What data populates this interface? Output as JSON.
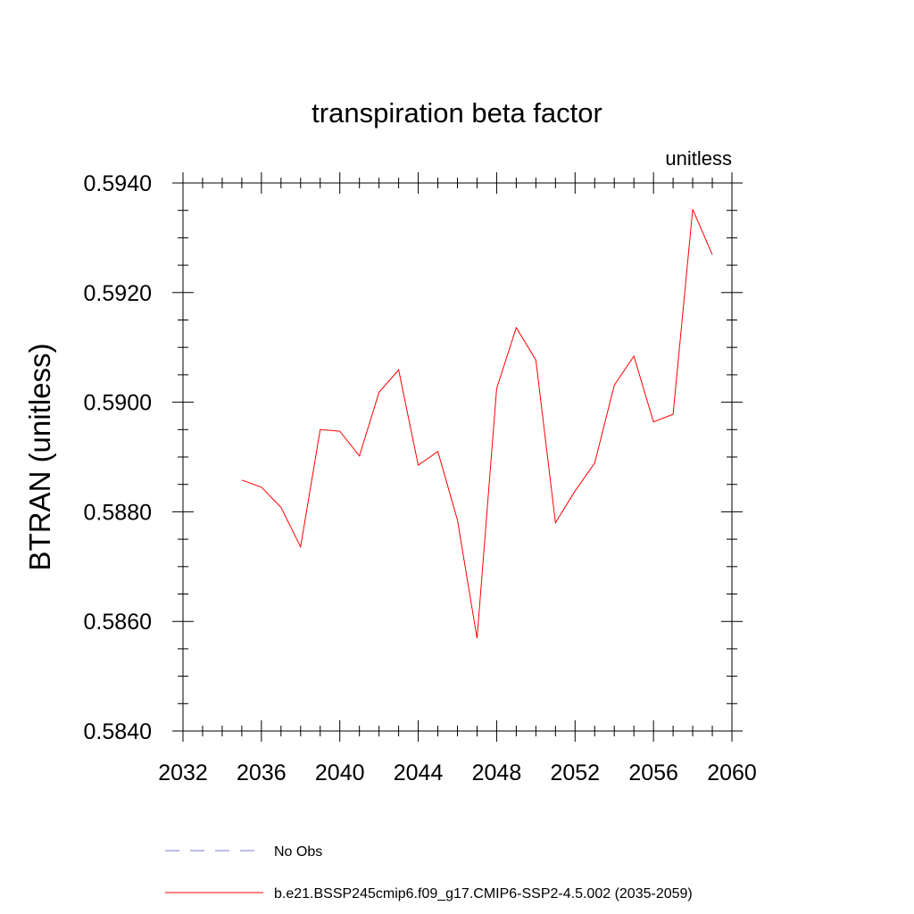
{
  "chart_data": {
    "type": "line",
    "title": "transpiration beta factor",
    "units_label": "unitless",
    "xlabel": "",
    "ylabel": "BTRAN  (unitless)",
    "xlim": [
      2032,
      2060
    ],
    "ylim": [
      0.584,
      0.594
    ],
    "x_ticks": [
      2032,
      2036,
      2040,
      2044,
      2048,
      2052,
      2056,
      2060
    ],
    "x_tick_labels": [
      "2032",
      "2036",
      "2040",
      "2044",
      "2048",
      "2052",
      "2056",
      "2060"
    ],
    "y_ticks": [
      0.584,
      0.586,
      0.588,
      0.59,
      0.592,
      0.594
    ],
    "y_tick_labels": [
      "0.5840",
      "0.5860",
      "0.5880",
      "0.5900",
      "0.5920",
      "0.5940"
    ],
    "grid": false,
    "legend_position": "bottom",
    "series": [
      {
        "name": "b.e21.BSSP245cmip6.f09_g17.CMIP6-SSP2-4.5.002 (2035-2059)",
        "color": "#ff0000",
        "style": "solid",
        "x": [
          2035,
          2036,
          2037,
          2038,
          2039,
          2040,
          2041,
          2042,
          2043,
          2044,
          2045,
          2046,
          2047,
          2048,
          2049,
          2050,
          2051,
          2052,
          2053,
          2054,
          2055,
          2056,
          2057,
          2058,
          2059
        ],
        "values": [
          0.58858,
          0.58845,
          0.58808,
          0.58736,
          0.5895,
          0.58947,
          0.58902,
          0.59018,
          0.59059,
          0.58885,
          0.5891,
          0.58785,
          0.58569,
          0.59025,
          0.59136,
          0.59077,
          0.5878,
          0.58838,
          0.58889,
          0.59031,
          0.59084,
          0.58964,
          0.58978,
          0.59352,
          0.59269
        ]
      }
    ],
    "legend": [
      {
        "label": "No Obs",
        "color": "#7a7ad6",
        "style": "dashed"
      },
      {
        "label": "b.e21.BSSP245cmip6.f09_g17.CMIP6-SSP2-4.5.002 (2035-2059)",
        "color": "#ff0000",
        "style": "solid"
      }
    ]
  }
}
